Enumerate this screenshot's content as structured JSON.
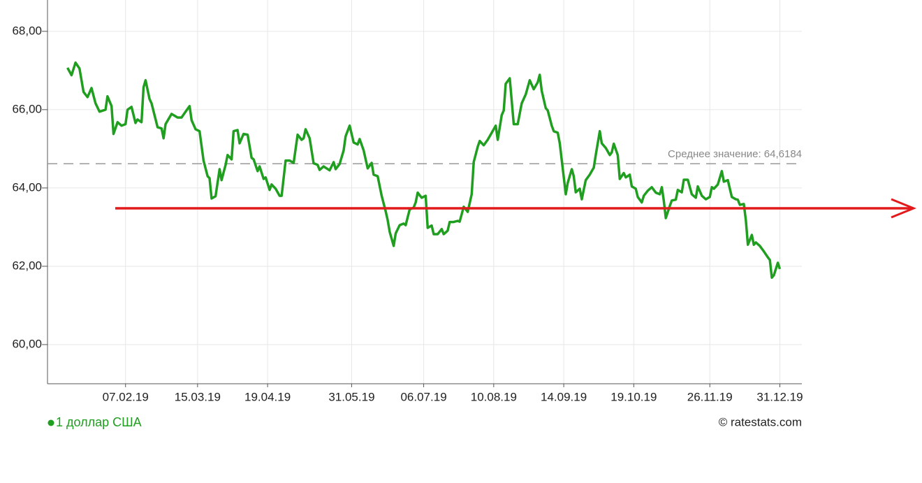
{
  "chart_data": {
    "type": "line",
    "x": [
      "09.01.19",
      "11.01.19",
      "13.01.19",
      "15.01.19",
      "17.01.19",
      "19.01.19",
      "21.01.19",
      "23.01.19",
      "25.01.19",
      "28.01.19",
      "29.01.19",
      "31.01.19",
      "01.02.19",
      "03.02.19",
      "05.02.19",
      "07.02.19",
      "08.02.19",
      "10.02.19",
      "12.02.19",
      "13.02.19",
      "15.02.19",
      "16.02.19",
      "17.02.19",
      "19.02.19",
      "20.02.19",
      "23.02.19",
      "25.02.19",
      "26.02.19",
      "27.02.19",
      "02.03.19",
      "05.03.19",
      "07.03.19",
      "09.03.19",
      "11.03.19",
      "12.03.19",
      "14.03.19",
      "16.03.19",
      "18.03.19",
      "20.03.19",
      "21.03.19",
      "22.03.19",
      "24.03.19",
      "26.03.19",
      "27.03.19",
      "29.03.19",
      "30.03.19",
      "01.04.19",
      "02.04.19",
      "04.04.19",
      "05.04.19",
      "07.04.19",
      "09.04.19",
      "11.04.19",
      "12.04.19",
      "14.04.19",
      "15.04.19",
      "17.04.19",
      "18.04.19",
      "20.04.19",
      "21.04.19",
      "23.04.19",
      "25.04.19",
      "26.04.19",
      "28.04.19",
      "30.04.19",
      "02.05.19",
      "04.05.19",
      "06.05.19",
      "07.05.19",
      "08.05.19",
      "10.05.19",
      "12.05.19",
      "14.05.19",
      "15.05.19",
      "17.05.19",
      "20.05.19",
      "22.05.19",
      "23.05.19",
      "25.05.19",
      "27.05.19",
      "28.05.19",
      "30.05.19",
      "01.06.19",
      "03.06.19",
      "04.06.19",
      "06.06.19",
      "07.06.19",
      "08.06.19",
      "10.06.19",
      "11.06.19",
      "13.06.19",
      "15.06.19",
      "17.06.19",
      "18.06.19",
      "19.06.19",
      "21.06.19",
      "22.06.19",
      "24.06.19",
      "26.06.19",
      "27.06.19",
      "29.06.19",
      "01.07.19",
      "02.07.19",
      "03.07.19",
      "05.07.19",
      "07.07.19",
      "08.07.19",
      "10.07.19",
      "11.07.19",
      "13.07.19",
      "15.07.19",
      "16.07.19",
      "18.07.19",
      "19.07.19",
      "21.07.19",
      "23.07.19",
      "24.07.19",
      "26.07.19",
      "28.07.19",
      "30.07.19",
      "31.07.19",
      "02.08.19",
      "03.08.19",
      "05.08.19",
      "07.08.19",
      "09.08.19",
      "11.08.19",
      "12.08.19",
      "14.08.19",
      "15.08.19",
      "16.08.19",
      "18.08.19",
      "20.08.19",
      "22.08.19",
      "24.08.19",
      "26.08.19",
      "28.08.19",
      "30.08.19",
      "01.09.19",
      "02.09.19",
      "03.09.19",
      "05.09.19",
      "06.09.19",
      "08.09.19",
      "09.09.19",
      "11.09.19",
      "12.09.19",
      "15.09.19",
      "16.09.19",
      "18.09.19",
      "19.09.19",
      "20.09.19",
      "22.09.19",
      "23.09.19",
      "25.09.19",
      "27.09.19",
      "29.09.19",
      "30.09.19",
      "02.10.19",
      "03.10.19",
      "05.10.19",
      "07.10.19",
      "08.10.19",
      "09.10.19",
      "11.10.19",
      "12.10.19",
      "14.10.19",
      "15.10.19",
      "17.10.19",
      "18.10.19",
      "20.10.19",
      "21.10.19",
      "23.10.19",
      "24.10.19",
      "26.10.19",
      "28.10.19",
      "30.10.19",
      "01.11.19",
      "02.11.19",
      "03.11.19",
      "04.11.19",
      "06.11.19",
      "07.11.19",
      "09.11.19",
      "10.11.19",
      "12.11.19",
      "13.11.19",
      "15.11.19",
      "17.11.19",
      "19.11.19",
      "20.11.19",
      "22.11.19",
      "24.11.19",
      "26.11.19",
      "27.11.19",
      "28.11.19",
      "30.11.19",
      "02.12.19",
      "03.12.19",
      "05.12.19",
      "07.12.19",
      "09.12.19",
      "10.12.19",
      "11.12.19",
      "13.12.19",
      "14.12.19",
      "15.12.19",
      "17.12.19",
      "18.12.19",
      "19.12.19",
      "21.12.19",
      "23.12.19",
      "25.12.19",
      "26.12.19",
      "27.12.19",
      "28.12.19",
      "30.12.19",
      "31.12.19"
    ],
    "series": [
      {
        "name": "1 доллар США",
        "color": "#1f9e1f",
        "values": [
          67.07,
          66.88,
          67.2,
          67.05,
          66.45,
          66.32,
          66.55,
          66.16,
          65.95,
          66.0,
          66.34,
          66.09,
          65.38,
          65.68,
          65.59,
          65.63,
          66.0,
          66.07,
          65.66,
          65.75,
          65.68,
          66.57,
          66.75,
          66.27,
          66.16,
          65.55,
          65.52,
          65.27,
          65.63,
          65.89,
          65.8,
          65.8,
          65.95,
          66.09,
          65.73,
          65.5,
          65.45,
          64.7,
          64.3,
          64.25,
          63.73,
          63.79,
          64.48,
          64.2,
          64.59,
          64.84,
          64.73,
          65.45,
          65.48,
          65.14,
          65.38,
          65.36,
          64.77,
          64.73,
          64.43,
          64.55,
          64.23,
          64.27,
          63.95,
          64.09,
          63.98,
          63.8,
          63.8,
          64.7,
          64.7,
          64.64,
          65.36,
          65.23,
          65.27,
          65.5,
          65.27,
          64.63,
          64.59,
          64.46,
          64.55,
          64.45,
          64.66,
          64.48,
          64.61,
          64.96,
          65.32,
          65.59,
          65.16,
          65.11,
          65.25,
          64.96,
          64.73,
          64.5,
          64.64,
          64.34,
          64.3,
          63.8,
          63.41,
          63.18,
          62.88,
          62.52,
          62.84,
          63.05,
          63.09,
          63.05,
          63.45,
          63.5,
          63.63,
          63.88,
          63.75,
          63.8,
          62.98,
          63.04,
          62.82,
          62.82,
          62.95,
          62.82,
          62.91,
          63.13,
          63.13,
          63.16,
          63.14,
          63.52,
          63.39,
          63.84,
          64.66,
          65.05,
          65.2,
          65.09,
          65.23,
          65.41,
          65.59,
          65.23,
          65.86,
          65.98,
          66.66,
          66.8,
          65.63,
          65.63,
          66.16,
          66.39,
          66.75,
          66.52,
          66.7,
          66.89,
          66.48,
          66.04,
          65.98,
          65.59,
          65.45,
          65.41,
          65.14,
          63.84,
          64.13,
          64.48,
          64.3,
          63.89,
          63.98,
          63.71,
          64.2,
          64.34,
          64.52,
          64.84,
          65.45,
          65.14,
          65.02,
          64.84,
          64.91,
          65.13,
          64.84,
          64.23,
          64.38,
          64.27,
          64.34,
          64.04,
          63.98,
          63.77,
          63.63,
          63.8,
          63.93,
          64.02,
          63.88,
          63.84,
          64.02,
          63.68,
          63.23,
          63.54,
          63.68,
          63.7,
          63.95,
          63.89,
          64.21,
          64.21,
          63.84,
          63.75,
          64.04,
          63.8,
          63.71,
          63.77,
          64.02,
          63.98,
          64.09,
          64.43,
          64.16,
          64.2,
          63.77,
          63.71,
          63.7,
          63.57,
          63.59,
          63.18,
          62.55,
          62.8,
          62.55,
          62.61,
          62.52,
          62.38,
          62.23,
          62.16,
          61.71,
          61.77,
          62.09,
          61.93
        ]
      }
    ],
    "xlim": [
      "30.12.18",
      "11.01.20"
    ],
    "xticks": [
      "07.02.19",
      "15.03.19",
      "19.04.19",
      "31.05.19",
      "06.07.19",
      "10.08.19",
      "14.09.19",
      "19.10.19",
      "26.11.19",
      "31.12.19"
    ],
    "ylim": [
      59,
      68.8
    ],
    "yticks": [
      {
        "value": 60,
        "label": "60,00"
      },
      {
        "value": 62,
        "label": "62,00"
      },
      {
        "value": 64,
        "label": "64,00"
      },
      {
        "value": 66,
        "label": "66,00"
      },
      {
        "value": 68,
        "label": "68,00"
      }
    ],
    "grid": true,
    "mean": {
      "value": 64.6184,
      "label": "Среднее значение: 64,6184"
    },
    "reference_line": {
      "value": 63.48,
      "color": "#e31a1c"
    },
    "credit": "© ratestats.com"
  }
}
